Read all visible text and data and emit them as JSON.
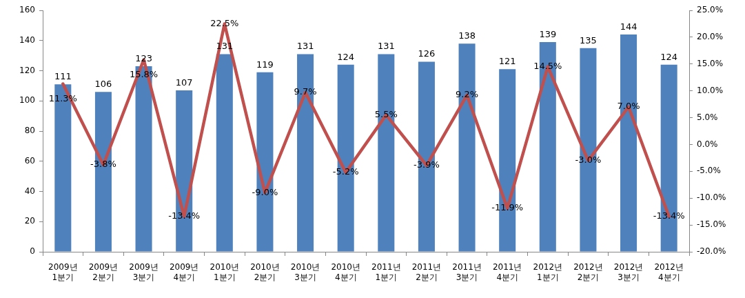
{
  "chart_data": {
    "type": "bar",
    "categories": [
      "2009년\n1분기",
      "2009년\n2분기",
      "2009년\n3분기",
      "2009년\n4분기",
      "2010년\n1분기",
      "2010년\n2분기",
      "2010년\n3분기",
      "2010년\n4분기",
      "2011년\n1분기",
      "2011년\n2분기",
      "2011년\n3분기",
      "2011년\n4분기",
      "2012년\n1분기",
      "2012년\n2분기",
      "2012년\n3분기",
      "2012년\n4분기"
    ],
    "series": [
      {
        "color": "#4f81bd",
        "values": [
          111,
          106,
          123,
          107,
          131,
          119,
          131,
          124,
          131,
          126,
          138,
          121,
          139,
          135,
          144,
          124
        ],
        "value_labels": [
          "111",
          "106",
          "123",
          "107",
          "131",
          "119",
          "131",
          "124",
          "131",
          "126",
          "138",
          "121",
          "139",
          "135",
          "144",
          "124"
        ]
      },
      {
        "type": "line",
        "axis": "y2",
        "color": "#c0504d",
        "values": [
          11.3,
          -3.8,
          15.8,
          -13.4,
          22.5,
          -9.0,
          9.7,
          -5.2,
          5.5,
          -3.9,
          9.2,
          -11.9,
          14.5,
          -3.0,
          7.0,
          -13.4
        ],
        "value_labels": [
          "11.3%",
          "-3.8%",
          "15.8%",
          "-13.4%",
          "22.5%",
          "-9.0%",
          "9.7%",
          "-5.2%",
          "5.5%",
          "-3.9%",
          "9.2%",
          "-11.9%",
          "14.5%",
          "-3.0%",
          "7.0%",
          "-13.4%"
        ]
      }
    ],
    "ylim": [
      0,
      160
    ],
    "yticks": [
      0,
      20,
      40,
      60,
      80,
      100,
      120,
      140,
      160
    ],
    "y2lim": [
      -20,
      25
    ],
    "y2ticks": [
      {
        "value": -20,
        "label": "-20.0%"
      },
      {
        "value": -15,
        "label": "-15.0%"
      },
      {
        "value": -10,
        "label": "-10.0%"
      },
      {
        "value": -5,
        "label": "-5.0%"
      },
      {
        "value": 0,
        "label": "0.0%"
      },
      {
        "value": 5,
        "label": "5.0%"
      },
      {
        "value": 10,
        "label": "10.0%"
      },
      {
        "value": 15,
        "label": "15.0%"
      },
      {
        "value": 20,
        "label": "20.0%"
      },
      {
        "value": 25,
        "label": "25.0%"
      }
    ]
  }
}
